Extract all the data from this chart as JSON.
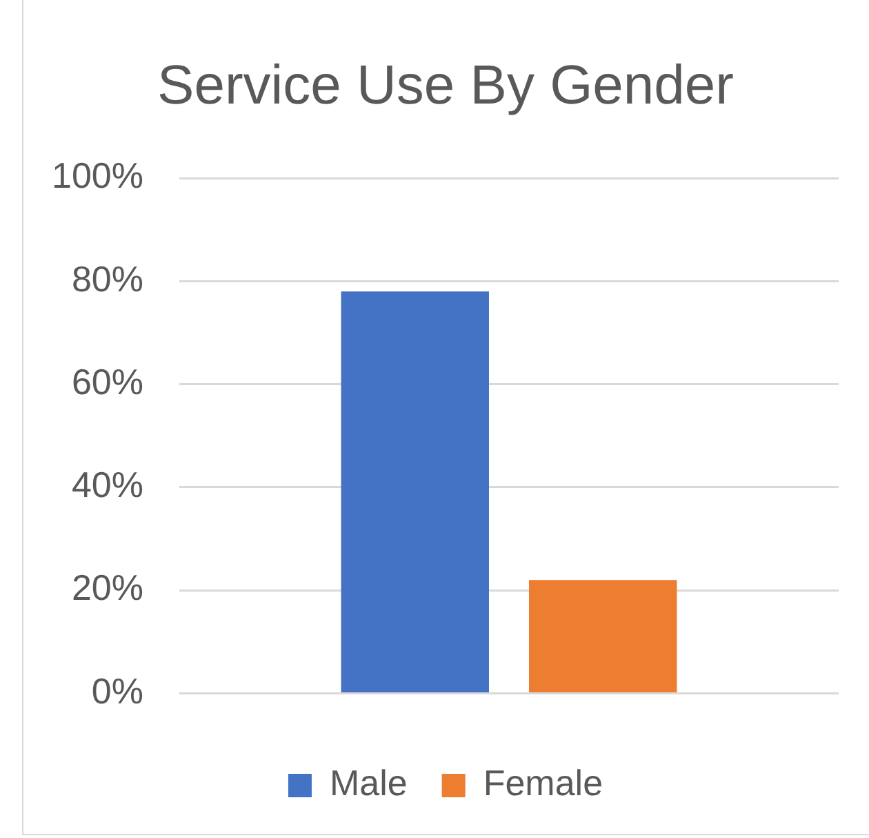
{
  "chart_data": {
    "type": "bar",
    "title": "Service Use By Gender",
    "categories": [
      null
    ],
    "series": [
      {
        "name": "Male",
        "color": "#4472c4",
        "values": [
          78
        ]
      },
      {
        "name": "Female",
        "color": "#ed7d31",
        "values": [
          22
        ]
      }
    ],
    "ylim": [
      0,
      100
    ],
    "yticks": [
      {
        "value": 0,
        "label": "0%"
      },
      {
        "value": 20,
        "label": "20%"
      },
      {
        "value": 40,
        "label": "40%"
      },
      {
        "value": 60,
        "label": "60%"
      },
      {
        "value": 80,
        "label": "80%"
      },
      {
        "value": 100,
        "label": "100%"
      }
    ],
    "grid": "y",
    "legend": "bottom"
  }
}
